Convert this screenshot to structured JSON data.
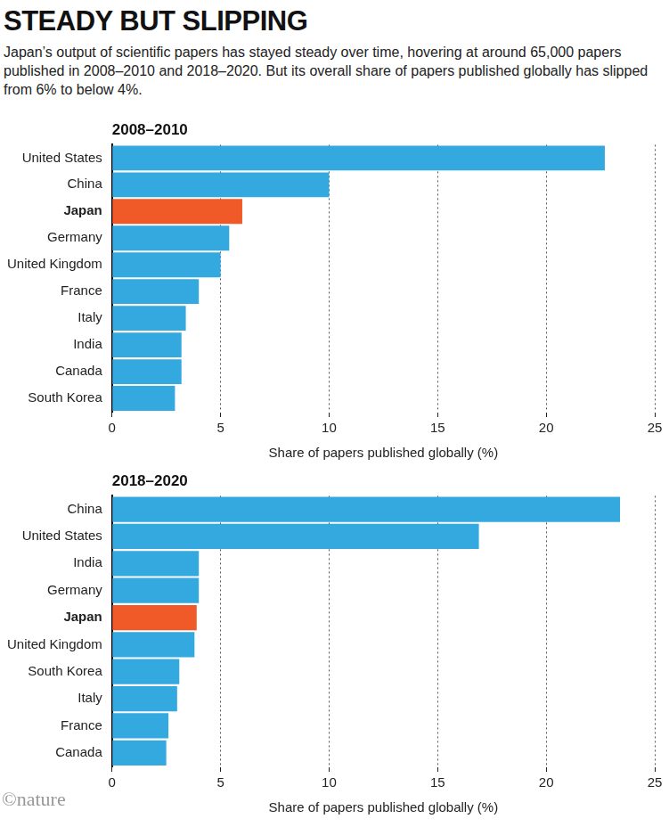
{
  "title": "STEADY BUT SLIPPING",
  "subtitle": "Japan’s output of scientific papers has stayed steady over time, hovering at around 65,000 papers published in 2008–2010 and 2018–2020. But its overall share of papers published globally has slipped from 6% to below 4%.",
  "source": "©nature",
  "chart_data": [
    {
      "type": "bar",
      "title": "2008–2010",
      "orientation": "horizontal",
      "categories": [
        "United States",
        "China",
        "Japan",
        "Germany",
        "United Kingdom",
        "France",
        "Italy",
        "India",
        "Canada",
        "South Korea"
      ],
      "values": [
        22.7,
        10.0,
        6.0,
        5.4,
        5.0,
        4.0,
        3.4,
        3.2,
        3.2,
        2.9
      ],
      "colors": [
        "#33a9e0",
        "#33a9e0",
        "#f05a28",
        "#33a9e0",
        "#33a9e0",
        "#33a9e0",
        "#33a9e0",
        "#33a9e0",
        "#33a9e0",
        "#33a9e0"
      ],
      "x_label": "Share of papers published globally (%)",
      "xlim": [
        0,
        25
      ],
      "xticks": [
        0,
        5,
        10,
        15,
        20,
        25
      ],
      "grid": true
    },
    {
      "type": "bar",
      "title": "2018–2020",
      "orientation": "horizontal",
      "categories": [
        "China",
        "United States",
        "India",
        "Germany",
        "Japan",
        "United Kingdom",
        "South Korea",
        "Italy",
        "France",
        "Canada"
      ],
      "values": [
        23.4,
        16.9,
        4.0,
        4.0,
        3.9,
        3.8,
        3.1,
        3.0,
        2.6,
        2.5
      ],
      "colors": [
        "#33a9e0",
        "#33a9e0",
        "#33a9e0",
        "#33a9e0",
        "#f05a28",
        "#33a9e0",
        "#33a9e0",
        "#33a9e0",
        "#33a9e0",
        "#33a9e0"
      ],
      "x_label": "Share of papers published globally (%)",
      "xlim": [
        0,
        25
      ],
      "xticks": [
        0,
        5,
        10,
        15,
        20,
        25
      ],
      "grid": true
    }
  ]
}
